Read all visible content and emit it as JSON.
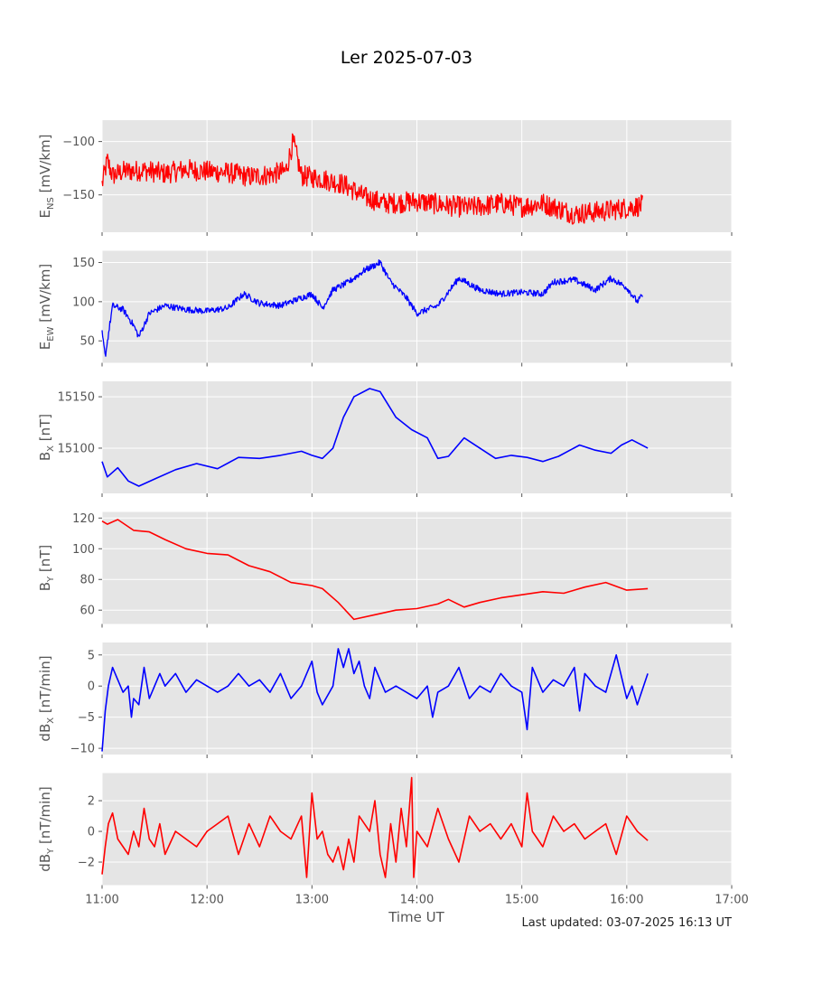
{
  "title": "Ler 2025-07-03",
  "xlabel": "Time UT",
  "footer": "Last updated: 03-07-2025 16:13 UT",
  "x_ticks": [
    "11:00",
    "12:00",
    "13:00",
    "14:00",
    "15:00",
    "16:00",
    "17:00"
  ],
  "colors": {
    "panel_bg": "#e5e5e5",
    "grid": "#ffffff",
    "red": "#ff0000",
    "blue": "#0000ff",
    "text": "#555555"
  },
  "chart_data": [
    {
      "type": "line",
      "ylabel_main": "E",
      "ylabel_sub": "NS",
      "ylabel_unit": " [mV/km]",
      "color": "red",
      "noise": 10,
      "yticks": [
        -150,
        -100
      ],
      "ylim": [
        -185,
        -80
      ],
      "xlim": [
        11,
        17
      ],
      "x": [
        11.0,
        11.05,
        11.1,
        11.2,
        11.4,
        11.6,
        11.8,
        12.0,
        12.2,
        12.4,
        12.6,
        12.75,
        12.82,
        12.9,
        13.1,
        13.3,
        13.5,
        13.7,
        14.0,
        14.3,
        14.5,
        14.8,
        15.0,
        15.2,
        15.5,
        15.8,
        16.0,
        16.15
      ],
      "values": [
        -140,
        -118,
        -132,
        -128,
        -127,
        -130,
        -126,
        -128,
        -129,
        -133,
        -131,
        -128,
        -100,
        -132,
        -135,
        -140,
        -152,
        -158,
        -156,
        -160,
        -162,
        -158,
        -161,
        -158,
        -168,
        -165,
        -162,
        -160
      ]
    },
    {
      "type": "line",
      "ylabel_main": "E",
      "ylabel_sub": "EW",
      "ylabel_unit": " [mV/km]",
      "color": "blue",
      "noise": 4,
      "yticks": [
        50,
        100,
        150
      ],
      "ylim": [
        22,
        165
      ],
      "xlim": [
        11,
        17
      ],
      "x": [
        11.0,
        11.03,
        11.1,
        11.2,
        11.3,
        11.35,
        11.45,
        11.6,
        11.8,
        12.0,
        12.2,
        12.35,
        12.5,
        12.7,
        12.9,
        13.0,
        13.1,
        13.2,
        13.35,
        13.5,
        13.65,
        13.75,
        13.9,
        14.0,
        14.2,
        14.4,
        14.6,
        14.8,
        15.0,
        15.2,
        15.3,
        15.5,
        15.7,
        15.85,
        16.0,
        16.1,
        16.15
      ],
      "values": [
        60,
        30,
        95,
        90,
        70,
        55,
        85,
        95,
        90,
        88,
        92,
        110,
        98,
        95,
        105,
        110,
        92,
        115,
        125,
        140,
        150,
        125,
        105,
        85,
        95,
        130,
        115,
        110,
        112,
        110,
        125,
        128,
        115,
        130,
        118,
        100,
        108
      ]
    },
    {
      "type": "line",
      "ylabel_main": "B",
      "ylabel_sub": "X",
      "ylabel_unit": " [nT]",
      "color": "blue",
      "noise": 0,
      "yticks": [
        15100,
        15150
      ],
      "ylim": [
        15056,
        15165
      ],
      "xlim": [
        11,
        17
      ],
      "x": [
        11.0,
        11.05,
        11.15,
        11.25,
        11.35,
        11.5,
        11.7,
        11.9,
        12.1,
        12.3,
        12.5,
        12.7,
        12.9,
        13.0,
        13.1,
        13.2,
        13.3,
        13.4,
        13.55,
        13.65,
        13.8,
        13.95,
        14.1,
        14.2,
        14.3,
        14.45,
        14.6,
        14.75,
        14.9,
        15.05,
        15.2,
        15.35,
        15.55,
        15.7,
        15.85,
        15.95,
        16.05,
        16.2
      ],
      "values": [
        15087,
        15072,
        15081,
        15068,
        15063,
        15070,
        15079,
        15085,
        15080,
        15091,
        15090,
        15093,
        15097,
        15093,
        15090,
        15100,
        15130,
        15150,
        15158,
        15155,
        15130,
        15118,
        15110,
        15090,
        15092,
        15110,
        15100,
        15090,
        15093,
        15091,
        15087,
        15092,
        15103,
        15098,
        15095,
        15103,
        15108,
        15100
      ]
    },
    {
      "type": "line",
      "ylabel_main": "B",
      "ylabel_sub": "Y",
      "ylabel_unit": " [nT]",
      "color": "red",
      "noise": 0,
      "yticks": [
        60,
        80,
        100,
        120
      ],
      "ylim": [
        51,
        124
      ],
      "xlim": [
        11,
        17
      ],
      "x": [
        11.0,
        11.05,
        11.15,
        11.3,
        11.45,
        11.6,
        11.8,
        12.0,
        12.2,
        12.4,
        12.6,
        12.8,
        13.0,
        13.1,
        13.25,
        13.4,
        13.6,
        13.8,
        14.0,
        14.2,
        14.3,
        14.45,
        14.6,
        14.8,
        15.0,
        15.2,
        15.4,
        15.6,
        15.8,
        16.0,
        16.2
      ],
      "values": [
        118,
        116,
        119,
        112,
        111,
        106,
        100,
        97,
        96,
        89,
        85,
        78,
        76,
        74,
        65,
        54,
        57,
        60,
        61,
        64,
        67,
        62,
        65,
        68,
        70,
        72,
        71,
        75,
        78,
        73,
        74
      ]
    },
    {
      "type": "line",
      "ylabel_main": "dB",
      "ylabel_sub": "X",
      "ylabel_unit": " [nT/min]",
      "color": "blue",
      "noise": 0,
      "yticks": [
        -10,
        -5,
        0,
        5
      ],
      "ylim": [
        -11,
        7
      ],
      "xlim": [
        11,
        17
      ],
      "x": [
        11.0,
        11.03,
        11.06,
        11.1,
        11.15,
        11.2,
        11.25,
        11.28,
        11.3,
        11.35,
        11.4,
        11.45,
        11.5,
        11.55,
        11.6,
        11.7,
        11.8,
        11.9,
        12.0,
        12.1,
        12.2,
        12.3,
        12.4,
        12.5,
        12.6,
        12.7,
        12.8,
        12.9,
        13.0,
        13.05,
        13.1,
        13.2,
        13.25,
        13.3,
        13.35,
        13.4,
        13.45,
        13.5,
        13.55,
        13.6,
        13.7,
        13.8,
        13.9,
        14.0,
        14.1,
        14.15,
        14.2,
        14.3,
        14.4,
        14.5,
        14.6,
        14.7,
        14.8,
        14.9,
        15.0,
        15.05,
        15.1,
        15.2,
        15.3,
        15.4,
        15.5,
        15.55,
        15.6,
        15.7,
        15.8,
        15.9,
        16.0,
        16.05,
        16.1,
        16.2
      ],
      "values": [
        -10.5,
        -4,
        0,
        3,
        1,
        -1,
        0,
        -5,
        -2,
        -3,
        3,
        -2,
        0,
        2,
        0,
        2,
        -1,
        1,
        0,
        -1,
        0,
        2,
        0,
        1,
        -1,
        2,
        -2,
        0,
        4,
        -1,
        -3,
        0,
        6,
        3,
        6,
        2,
        4,
        0,
        -2,
        3,
        -1,
        0,
        -1,
        -2,
        0,
        -5,
        -1,
        0,
        3,
        -2,
        0,
        -1,
        2,
        0,
        -1,
        -7,
        3,
        -1,
        1,
        0,
        3,
        -4,
        2,
        0,
        -1,
        5,
        -2,
        0,
        -3,
        2
      ]
    },
    {
      "type": "line",
      "ylabel_main": "dB",
      "ylabel_sub": "Y",
      "ylabel_unit": " [nT/min]",
      "color": "red",
      "noise": 0,
      "yticks": [
        -2,
        0,
        2
      ],
      "ylim": [
        -3.5,
        3.8
      ],
      "xlim": [
        11,
        17
      ],
      "x": [
        11.0,
        11.03,
        11.06,
        11.1,
        11.15,
        11.2,
        11.25,
        11.3,
        11.35,
        11.4,
        11.45,
        11.5,
        11.55,
        11.6,
        11.7,
        11.8,
        11.9,
        12.0,
        12.1,
        12.2,
        12.3,
        12.4,
        12.5,
        12.6,
        12.7,
        12.8,
        12.9,
        12.95,
        13.0,
        13.05,
        13.1,
        13.15,
        13.2,
        13.25,
        13.3,
        13.35,
        13.4,
        13.45,
        13.5,
        13.55,
        13.6,
        13.65,
        13.7,
        13.75,
        13.8,
        13.85,
        13.9,
        13.95,
        13.97,
        14.0,
        14.1,
        14.2,
        14.3,
        14.4,
        14.5,
        14.6,
        14.7,
        14.8,
        14.9,
        15.0,
        15.05,
        15.1,
        15.2,
        15.3,
        15.4,
        15.5,
        15.6,
        15.7,
        15.8,
        15.9,
        16.0,
        16.1,
        16.2
      ],
      "values": [
        -2.8,
        -1,
        0.5,
        1.2,
        -0.5,
        -1,
        -1.5,
        0,
        -1,
        1.5,
        -0.5,
        -1,
        0.5,
        -1.5,
        0,
        -0.5,
        -1,
        0,
        0.5,
        1,
        -1.5,
        0.5,
        -1,
        1,
        0,
        -0.5,
        1,
        -3,
        2.5,
        -0.5,
        0,
        -1.5,
        -2,
        -1,
        -2.5,
        -0.5,
        -2,
        1,
        0.5,
        0,
        2,
        -1.5,
        -3,
        0.5,
        -2,
        1.5,
        -1,
        3.5,
        -3,
        0,
        -1,
        1.5,
        -0.5,
        -2,
        1,
        0,
        0.5,
        -0.5,
        0.5,
        -1,
        2.5,
        0,
        -1,
        1,
        0,
        0.5,
        -0.5,
        0,
        0.5,
        -1.5,
        1,
        0,
        -0.6
      ]
    }
  ]
}
